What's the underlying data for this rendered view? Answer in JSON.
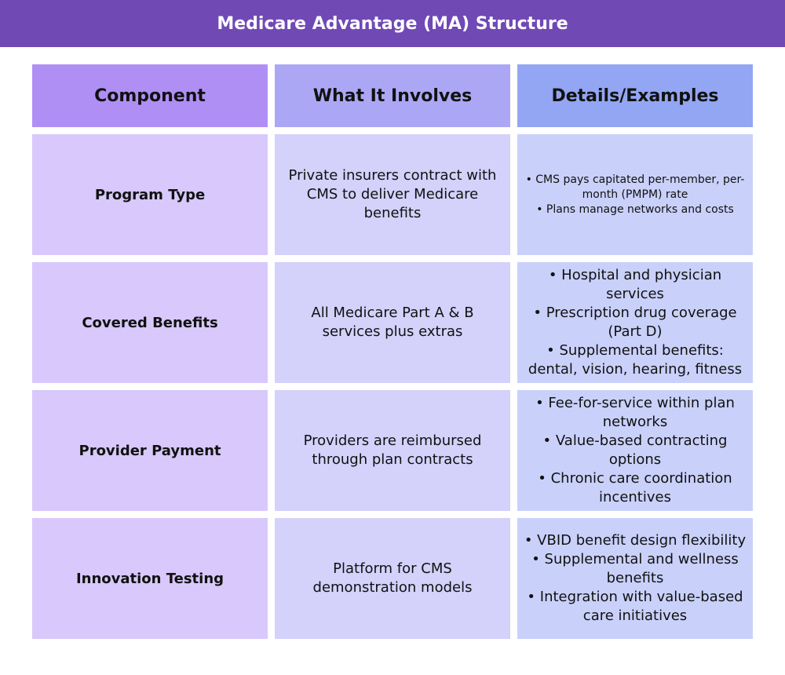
{
  "header": {
    "title": "Medicare Advantage (MA) Structure"
  },
  "table": {
    "columns": [
      "Component",
      "What It Involves",
      "Details/Examples"
    ],
    "rows": [
      {
        "component": "Program Type",
        "involves": "Private insurers contract with CMS to deliver Medicare benefits",
        "details": [
          "• CMS pays capitated per-member, per-month (PMPM) rate",
          "• Plans manage networks and costs"
        ]
      },
      {
        "component": "Covered Benefits",
        "involves": "All Medicare Part A & B services plus extras",
        "details": [
          "• Hospital and physician services",
          "• Prescription drug coverage (Part D)",
          "• Supplemental benefits: dental, vision, hearing, fitness"
        ]
      },
      {
        "component": "Provider Payment",
        "involves": "Providers are reimbursed through plan contracts",
        "details": [
          "• Fee-for-service within plan networks",
          "• Value-based contracting options",
          "• Chronic care coordination incentives"
        ]
      },
      {
        "component": "Innovation Testing",
        "involves": "Platform for CMS demonstration models",
        "details": [
          "• VBID benefit design flexibility",
          "• Supplemental and wellness benefits",
          "• Integration with value-based care initiatives"
        ]
      }
    ]
  }
}
